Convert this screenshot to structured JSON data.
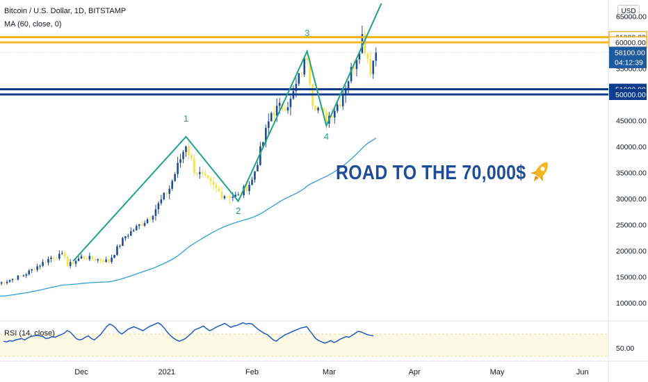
{
  "header": {
    "symbol_line": "Bitcoin / U.S. Dollar, 1D, BITSTAMP",
    "indicator_line": "MA (60, close, 0)",
    "currency_button": "USD"
  },
  "annotation": {
    "headline": "ROAD TO THE 70,000$",
    "rocket": "rocket-icon"
  },
  "colors": {
    "up_candle": "#1e4c96",
    "down_candle": "#f5e04a",
    "ma_line": "#2e9fd6",
    "wave_line": "#1fa287",
    "resistance": "#f5b623",
    "support": "#0d3c8c",
    "rsi_line": "#1d5bbf",
    "headline": "#1e4c96"
  },
  "chart_data": {
    "type": "candlestick",
    "title": "Bitcoin / U.S. Dollar, 1D, BITSTAMP",
    "y_axis": {
      "ticks": [
        10000,
        15000,
        20000,
        25000,
        30000,
        35000,
        40000,
        45000,
        50000,
        55000,
        60000,
        65000
      ],
      "tick_labels": [
        "10000.00",
        "15000.00",
        "20000.00",
        "25000.00",
        "30000.00",
        "35000.00",
        "40000.00",
        "45000.00",
        "50000.00",
        "55000.00",
        "60000.00",
        "65000.00"
      ]
    },
    "x_axis": {
      "ticks": [
        {
          "label": "Dec",
          "date": "2020-12-01"
        },
        {
          "label": "2021",
          "date": "2021-01-01"
        },
        {
          "label": "Feb",
          "date": "2021-02-01"
        },
        {
          "label": "Mar",
          "date": "2021-03-01"
        },
        {
          "label": "Apr",
          "date": "2021-04-01"
        },
        {
          "label": "May",
          "date": "2021-05-01"
        },
        {
          "label": "Jun",
          "date": "2021-06-01"
        }
      ]
    },
    "horizontal_levels": [
      {
        "label": "61000.00",
        "value": 61000,
        "kind": "resistance"
      },
      {
        "label": "60000.00",
        "value": 60000,
        "kind": "resistance"
      },
      {
        "label": "51000.00",
        "value": 51000,
        "kind": "support"
      },
      {
        "label": "50000.00",
        "value": 50000,
        "kind": "support"
      }
    ],
    "last_price": {
      "label": "58100.00",
      "value": 58100,
      "countdown": "04:12:39"
    },
    "candles_note": "daily candles approximating BTC/USD Nov 2020 - Mar 2021",
    "close_series": [
      {
        "date": "2020-11-01",
        "close": 13700
      },
      {
        "date": "2020-11-10",
        "close": 15300
      },
      {
        "date": "2020-11-20",
        "close": 18700
      },
      {
        "date": "2020-11-25",
        "close": 19200
      },
      {
        "date": "2020-11-26",
        "close": 17100
      },
      {
        "date": "2020-12-01",
        "close": 18800
      },
      {
        "date": "2020-12-11",
        "close": 18000
      },
      {
        "date": "2020-12-17",
        "close": 22800
      },
      {
        "date": "2020-12-26",
        "close": 26500
      },
      {
        "date": "2021-01-02",
        "close": 32000
      },
      {
        "date": "2021-01-08",
        "close": 40500
      },
      {
        "date": "2021-01-11",
        "close": 35600
      },
      {
        "date": "2021-01-21",
        "close": 30800
      },
      {
        "date": "2021-01-27",
        "close": 30400
      },
      {
        "date": "2021-02-01",
        "close": 33500
      },
      {
        "date": "2021-02-08",
        "close": 46500
      },
      {
        "date": "2021-02-15",
        "close": 48700
      },
      {
        "date": "2021-02-21",
        "close": 57500
      },
      {
        "date": "2021-02-23",
        "close": 48800
      },
      {
        "date": "2021-02-28",
        "close": 45200
      },
      {
        "date": "2021-03-05",
        "close": 48800
      },
      {
        "date": "2021-03-10",
        "close": 55900
      },
      {
        "date": "2021-03-13",
        "close": 61200
      },
      {
        "date": "2021-03-16",
        "close": 55000
      },
      {
        "date": "2021-03-18",
        "close": 58100
      }
    ],
    "ma": {
      "name": "MA (60, close, 0)"
    },
    "wave_labels": [
      {
        "label": "1",
        "date": "2021-01-08",
        "value": 41900
      },
      {
        "label": "2",
        "date": "2021-01-27",
        "value": 29500
      },
      {
        "label": "3",
        "date": "2021-02-21",
        "value": 58300
      },
      {
        "label": "4",
        "date": "2021-02-28",
        "value": 44000
      }
    ],
    "rsi": {
      "name": "RSI (14, close)",
      "tick_labels": [
        "50.00"
      ],
      "values": [
        56,
        55,
        57,
        56,
        58,
        59,
        60,
        58,
        61,
        63,
        64,
        65,
        64,
        63,
        60,
        61,
        63,
        62,
        64,
        66,
        68,
        72,
        70,
        65,
        60,
        58,
        59,
        62,
        64,
        60,
        58,
        62,
        66,
        72,
        78,
        82,
        80,
        76,
        70,
        67,
        70,
        74,
        76,
        78,
        76,
        74,
        72,
        75,
        78,
        80,
        82,
        84,
        81,
        76,
        70,
        65,
        61,
        58,
        56,
        58,
        60,
        64,
        68,
        73,
        75,
        77,
        79,
        75,
        72,
        74,
        77,
        79,
        81,
        83,
        80,
        77,
        79,
        80,
        82,
        84,
        82,
        83,
        82,
        78,
        74,
        71,
        68,
        66,
        62,
        58,
        56,
        60,
        63,
        66,
        68,
        70,
        72,
        74,
        76,
        77,
        78,
        72,
        66,
        60,
        57,
        55,
        53,
        55,
        57,
        54,
        56,
        59,
        61,
        63,
        62,
        65,
        68,
        71,
        70,
        68,
        66,
        65,
        64
      ]
    }
  }
}
